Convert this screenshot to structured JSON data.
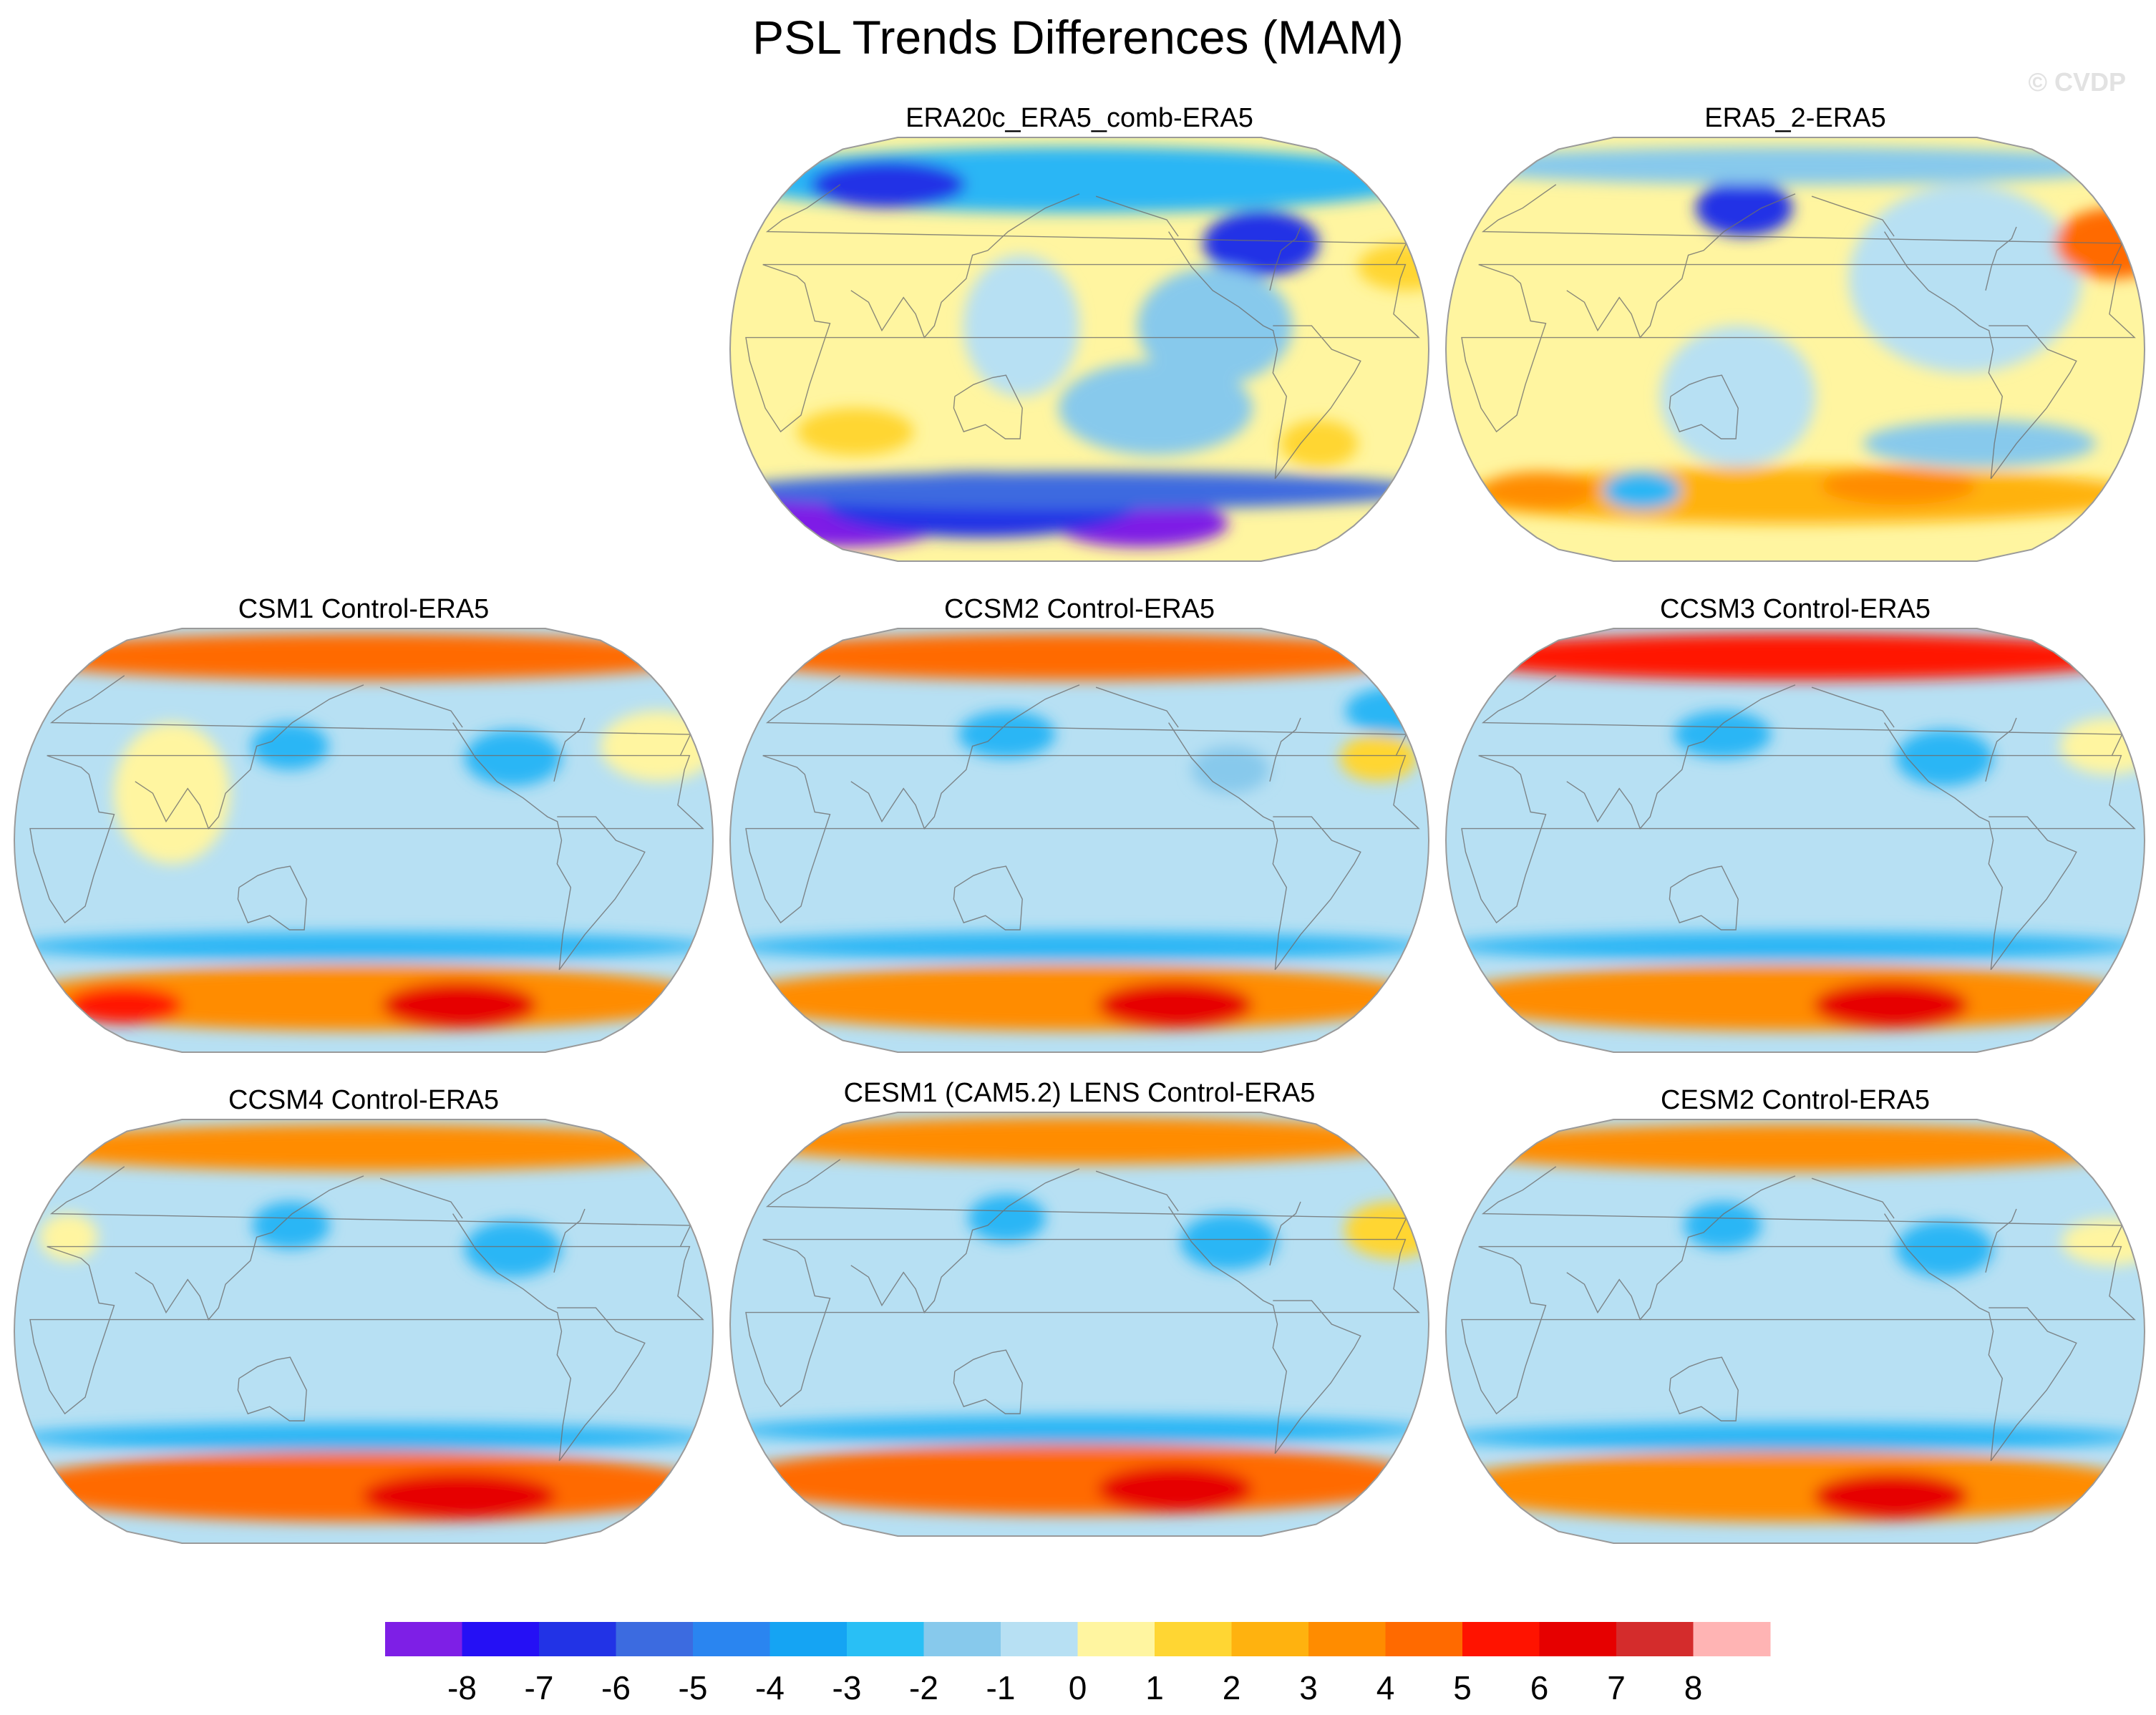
{
  "title": "PSL Trends Differences (MAM)",
  "watermark": "© CVDP",
  "panels": [
    {
      "label": "ERA20c_ERA5_comb-ERA5",
      "base": "#fff5a0",
      "blobs": [
        {
          "lon": -150,
          "lat": -72,
          "rx": 55,
          "ry": 12,
          "color": "#7e1fe6"
        },
        {
          "lon": 40,
          "lat": -74,
          "rx": 45,
          "ry": 10,
          "color": "#7e1fe6"
        },
        {
          "lon": -60,
          "lat": -66,
          "rx": 80,
          "ry": 14,
          "color": "#2233e6"
        },
        {
          "lon": 0,
          "lat": -60,
          "rx": 180,
          "ry": 8,
          "color": "#3c6be0"
        },
        {
          "lon": 0,
          "lat": 72,
          "rx": 180,
          "ry": 14,
          "color": "#29b6f5"
        },
        {
          "lon": 100,
          "lat": 45,
          "rx": 30,
          "ry": 14,
          "color": "#2233e6"
        },
        {
          "lon": -120,
          "lat": 70,
          "rx": 40,
          "ry": 10,
          "color": "#2233e6"
        },
        {
          "lon": 70,
          "lat": 10,
          "rx": 40,
          "ry": 25,
          "color": "#87c9ec"
        },
        {
          "lon": 40,
          "lat": -25,
          "rx": 50,
          "ry": 20,
          "color": "#87c9ec"
        },
        {
          "lon": -30,
          "lat": 10,
          "rx": 30,
          "ry": 30,
          "color": "#b7e0f3"
        },
        {
          "lon": 175,
          "lat": 35,
          "rx": 25,
          "ry": 10,
          "color": "#ffd633"
        },
        {
          "lon": 130,
          "lat": -40,
          "rx": 20,
          "ry": 10,
          "color": "#ffd633"
        },
        {
          "lon": -120,
          "lat": -35,
          "rx": 30,
          "ry": 10,
          "color": "#ffd633"
        }
      ]
    },
    {
      "label": "ERA5_2-ERA5",
      "base": "#fff5a0",
      "blobs": [
        {
          "lon": 0,
          "lat": -62,
          "rx": 180,
          "ry": 12,
          "color": "#ffb20f"
        },
        {
          "lon": 60,
          "lat": -58,
          "rx": 40,
          "ry": 8,
          "color": "#ff8c00"
        },
        {
          "lon": -150,
          "lat": -60,
          "rx": 30,
          "ry": 8,
          "color": "#ff8c00"
        },
        {
          "lon": -90,
          "lat": -60,
          "rx": 20,
          "ry": 8,
          "color": "#29b6f5"
        },
        {
          "lon": 100,
          "lat": -40,
          "rx": 60,
          "ry": 10,
          "color": "#87c9ec"
        },
        {
          "lon": 90,
          "lat": 30,
          "rx": 60,
          "ry": 40,
          "color": "#b7e0f3"
        },
        {
          "lon": -30,
          "lat": -20,
          "rx": 40,
          "ry": 30,
          "color": "#b7e0f3"
        },
        {
          "lon": 175,
          "lat": 45,
          "rx": 30,
          "ry": 15,
          "color": "#ff6a00"
        },
        {
          "lon": -30,
          "lat": 60,
          "rx": 25,
          "ry": 12,
          "color": "#2233e6"
        },
        {
          "lon": 0,
          "lat": 78,
          "rx": 180,
          "ry": 8,
          "color": "#87c9ec"
        }
      ]
    },
    {
      "label": "CSM1 Control-ERA5",
      "base": "#b7e0f3",
      "blobs": [
        {
          "lon": 0,
          "lat": -67,
          "rx": 180,
          "ry": 14,
          "color": "#ff8c00"
        },
        {
          "lon": 60,
          "lat": -70,
          "rx": 40,
          "ry": 10,
          "color": "#e60000"
        },
        {
          "lon": -150,
          "lat": -70,
          "rx": 30,
          "ry": 8,
          "color": "#ff1300"
        },
        {
          "lon": 0,
          "lat": -45,
          "rx": 180,
          "ry": 6,
          "color": "#29b6f5"
        },
        {
          "lon": 0,
          "lat": 78,
          "rx": 180,
          "ry": 10,
          "color": "#ff6a00"
        },
        {
          "lon": 80,
          "lat": 35,
          "rx": 25,
          "ry": 12,
          "color": "#29b6f5"
        },
        {
          "lon": -40,
          "lat": 40,
          "rx": 20,
          "ry": 10,
          "color": "#29b6f5"
        },
        {
          "lon": -100,
          "lat": 20,
          "rx": 30,
          "ry": 30,
          "color": "#fff5a0"
        },
        {
          "lon": 160,
          "lat": 40,
          "rx": 30,
          "ry": 15,
          "color": "#fff5a0"
        }
      ]
    },
    {
      "label": "CCSM2 Control-ERA5",
      "base": "#b7e0f3",
      "blobs": [
        {
          "lon": 0,
          "lat": -67,
          "rx": 180,
          "ry": 14,
          "color": "#ff8c00"
        },
        {
          "lon": 60,
          "lat": -70,
          "rx": 40,
          "ry": 10,
          "color": "#e60000"
        },
        {
          "lon": 0,
          "lat": -45,
          "rx": 180,
          "ry": 6,
          "color": "#29b6f5"
        },
        {
          "lon": 0,
          "lat": 78,
          "rx": 180,
          "ry": 10,
          "color": "#ff6a00"
        },
        {
          "lon": 180,
          "lat": 55,
          "rx": 25,
          "ry": 10,
          "color": "#29b6f5"
        },
        {
          "lon": -40,
          "lat": 45,
          "rx": 25,
          "ry": 10,
          "color": "#29b6f5"
        },
        {
          "lon": 160,
          "lat": 35,
          "rx": 20,
          "ry": 10,
          "color": "#ffd633"
        },
        {
          "lon": 80,
          "lat": 30,
          "rx": 20,
          "ry": 10,
          "color": "#87c9ec"
        }
      ]
    },
    {
      "label": "CCSM3 Control-ERA5",
      "base": "#b7e0f3",
      "blobs": [
        {
          "lon": 0,
          "lat": -67,
          "rx": 180,
          "ry": 14,
          "color": "#ff8c00"
        },
        {
          "lon": 60,
          "lat": -70,
          "rx": 40,
          "ry": 10,
          "color": "#e60000"
        },
        {
          "lon": 0,
          "lat": -45,
          "rx": 180,
          "ry": 6,
          "color": "#29b6f5"
        },
        {
          "lon": 0,
          "lat": 78,
          "rx": 180,
          "ry": 10,
          "color": "#ff1300"
        },
        {
          "lon": -40,
          "lat": 45,
          "rx": 25,
          "ry": 10,
          "color": "#29b6f5"
        },
        {
          "lon": 80,
          "lat": 35,
          "rx": 25,
          "ry": 12,
          "color": "#29b6f5"
        },
        {
          "lon": 170,
          "lat": 40,
          "rx": 25,
          "ry": 12,
          "color": "#fff5a0"
        }
      ]
    },
    {
      "label": "CCSM4 Control-ERA5",
      "base": "#b7e0f3",
      "blobs": [
        {
          "lon": 0,
          "lat": -66,
          "rx": 180,
          "ry": 15,
          "color": "#ff6a00"
        },
        {
          "lon": 60,
          "lat": -70,
          "rx": 50,
          "ry": 10,
          "color": "#e60000"
        },
        {
          "lon": 0,
          "lat": -45,
          "rx": 180,
          "ry": 6,
          "color": "#29b6f5"
        },
        {
          "lon": 0,
          "lat": 78,
          "rx": 180,
          "ry": 10,
          "color": "#ff8c00"
        },
        {
          "lon": 80,
          "lat": 35,
          "rx": 25,
          "ry": 12,
          "color": "#29b6f5"
        },
        {
          "lon": -40,
          "lat": 45,
          "rx": 20,
          "ry": 10,
          "color": "#29b6f5"
        },
        {
          "lon": -160,
          "lat": 40,
          "rx": 15,
          "ry": 10,
          "color": "#fff5a0"
        }
      ]
    },
    {
      "label": "CESM1 (CAM5.2) LENS Control-ERA5",
      "base": "#b7e0f3",
      "blobs": [
        {
          "lon": 0,
          "lat": -66,
          "rx": 180,
          "ry": 15,
          "color": "#ff6a00"
        },
        {
          "lon": 60,
          "lat": -70,
          "rx": 40,
          "ry": 10,
          "color": "#e60000"
        },
        {
          "lon": 0,
          "lat": -45,
          "rx": 180,
          "ry": 6,
          "color": "#29b6f5"
        },
        {
          "lon": 0,
          "lat": 78,
          "rx": 180,
          "ry": 10,
          "color": "#ff8c00"
        },
        {
          "lon": 80,
          "lat": 35,
          "rx": 25,
          "ry": 12,
          "color": "#29b6f5"
        },
        {
          "lon": -40,
          "lat": 45,
          "rx": 20,
          "ry": 10,
          "color": "#29b6f5"
        },
        {
          "lon": 170,
          "lat": 40,
          "rx": 25,
          "ry": 12,
          "color": "#ffd633"
        }
      ]
    },
    {
      "label": "CESM2 Control-ERA5",
      "base": "#b7e0f3",
      "blobs": [
        {
          "lon": 0,
          "lat": -66,
          "rx": 180,
          "ry": 15,
          "color": "#ff8c00"
        },
        {
          "lon": 60,
          "lat": -70,
          "rx": 40,
          "ry": 10,
          "color": "#e60000"
        },
        {
          "lon": 0,
          "lat": -45,
          "rx": 180,
          "ry": 6,
          "color": "#29b6f5"
        },
        {
          "lon": 0,
          "lat": 78,
          "rx": 180,
          "ry": 10,
          "color": "#ff8c00"
        },
        {
          "lon": 80,
          "lat": 35,
          "rx": 25,
          "ry": 12,
          "color": "#29b6f5"
        },
        {
          "lon": -40,
          "lat": 45,
          "rx": 20,
          "ry": 10,
          "color": "#29b6f5"
        },
        {
          "lon": 170,
          "lat": 38,
          "rx": 25,
          "ry": 10,
          "color": "#fff5a0"
        }
      ]
    }
  ],
  "colorbar": {
    "colors": [
      "#7e1fe6",
      "#2510f5",
      "#2233e6",
      "#3c6be0",
      "#2a85f0",
      "#15a4f3",
      "#29bff5",
      "#87c9ec",
      "#b7e0f3",
      "#fff5a0",
      "#ffd633",
      "#ffb20f",
      "#ff8c00",
      "#ff6a00",
      "#ff1300",
      "#e60000",
      "#d42c2c",
      "#ffb4b4"
    ],
    "labels": [
      "-8",
      "-7",
      "-6",
      "-5",
      "-4",
      "-3",
      "-2",
      "-1",
      "0",
      "1",
      "2",
      "3",
      "4",
      "5",
      "6",
      "7",
      "8"
    ]
  }
}
